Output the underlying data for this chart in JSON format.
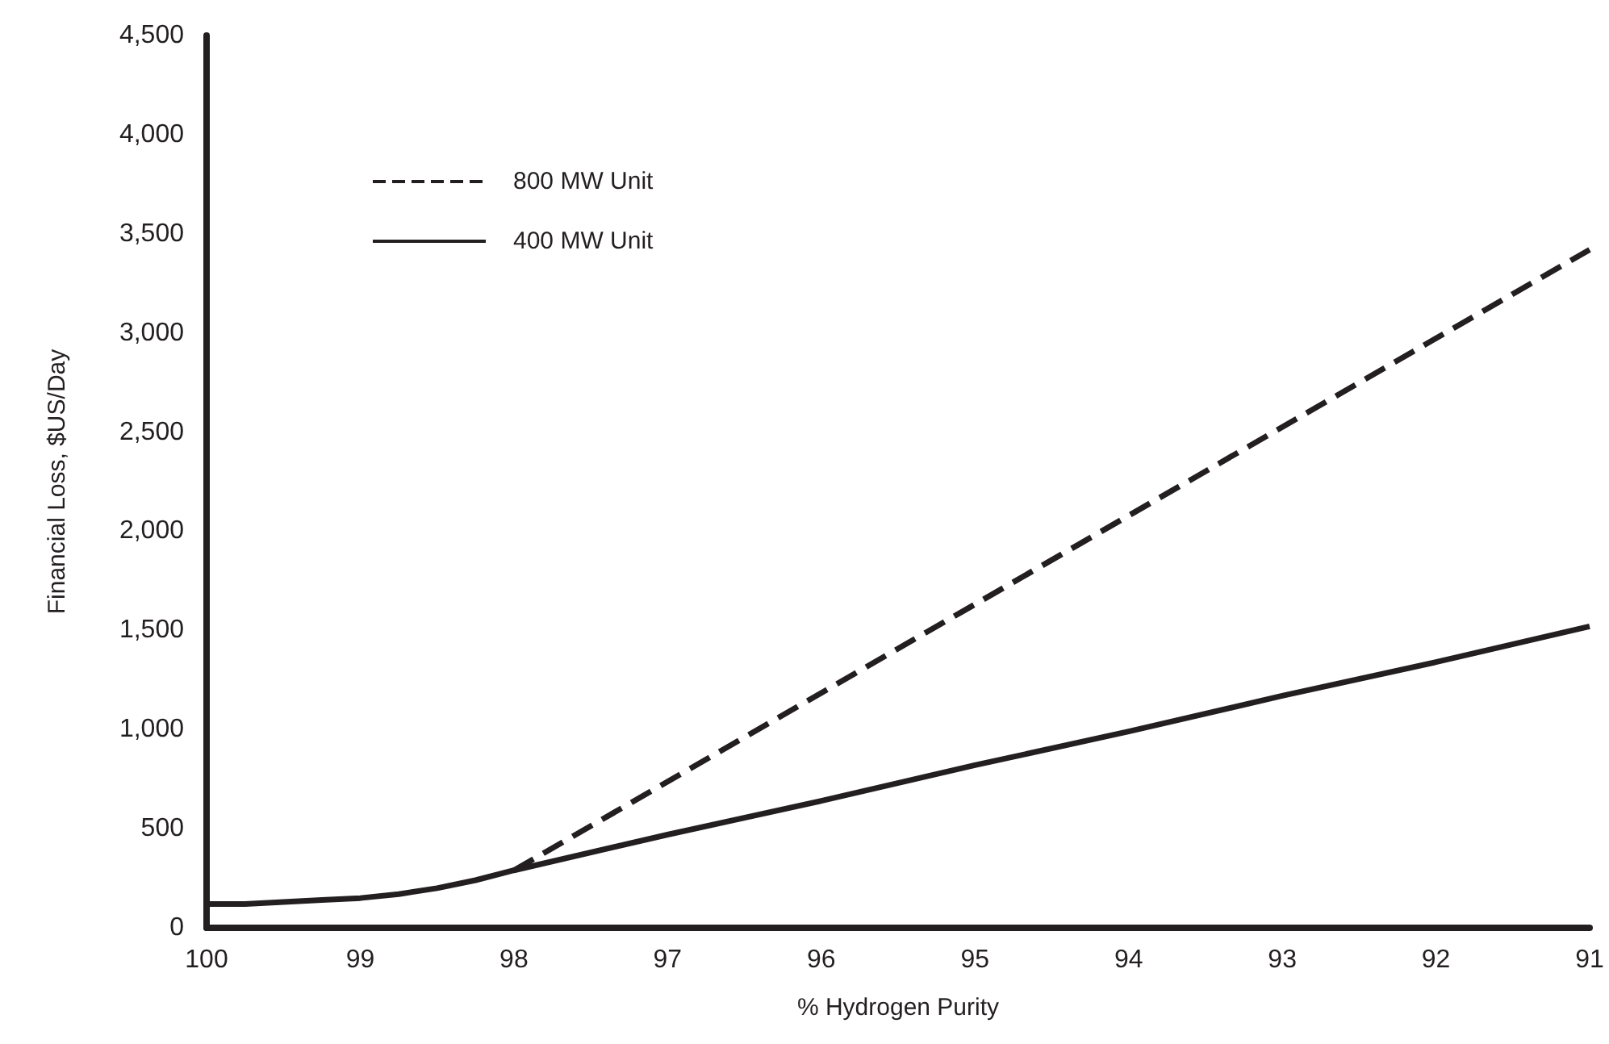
{
  "chart_data": {
    "type": "line",
    "xlabel": "% Hydrogen Purity",
    "ylabel": "Financial Loss, $US/Day",
    "xlim": [
      100,
      91
    ],
    "xticks": [
      100,
      99,
      98,
      97,
      96,
      95,
      94,
      93,
      92,
      91
    ],
    "ylim": [
      0,
      4500
    ],
    "yticks": [
      0,
      500,
      {
        "value": 1000,
        "label": "1,000"
      },
      {
        "value": 1500,
        "label": "1,500"
      },
      {
        "value": 2000,
        "label": "2,000"
      },
      {
        "value": 2500,
        "label": "2,500"
      },
      {
        "value": 3000,
        "label": "3,000"
      },
      {
        "value": 3500,
        "label": "3,500"
      },
      {
        "value": 4000,
        "label": "4,000"
      },
      {
        "value": 4500,
        "label": "4,500"
      }
    ],
    "grid": false,
    "legend": "top left",
    "marker": "none",
    "series": [
      {
        "name": "800 MW Unit",
        "color": "#231f20",
        "line_style": "dashed",
        "x": [
          98,
          91
        ],
        "values": [
          290,
          3420
        ]
      },
      {
        "name": "400 MW Unit",
        "color": "#231f20",
        "line_style": "solid",
        "x": [
          100,
          99.75,
          99.5,
          99.25,
          99,
          98.75,
          98.5,
          98.25,
          98,
          97,
          96,
          95,
          94,
          93,
          92,
          91
        ],
        "values": [
          120,
          120,
          130,
          140,
          150,
          170,
          200,
          240,
          290,
          470,
          640,
          820,
          990,
          1170,
          1340,
          1520
        ]
      }
    ]
  }
}
